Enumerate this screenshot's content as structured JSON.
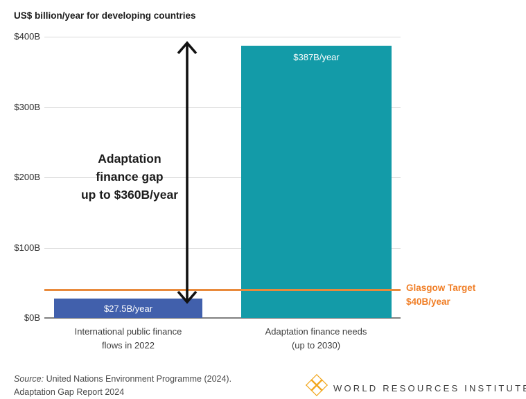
{
  "title": "US$ billion/year for developing countries",
  "chart_data": {
    "type": "bar",
    "categories": [
      "International public finance flows in 2022",
      "Adaptation finance needs (up to 2030)"
    ],
    "cat_labels": [
      [
        "International public finance",
        "flows in 2022"
      ],
      [
        "Adaptation finance needs",
        "(up to 2030)"
      ]
    ],
    "values": [
      27.5,
      387
    ],
    "bar_labels": [
      "$27.5B/year",
      "$387B/year"
    ],
    "bar_colors": [
      "#4160ac",
      "#139ba8"
    ],
    "title": "US$ billion/year for developing countries",
    "xlabel": "",
    "ylabel": "US$ billion/year",
    "ylim": [
      0,
      400
    ],
    "grid": "horizontal",
    "yticks": [
      {
        "value": 0,
        "label": "$0B"
      },
      {
        "value": 100,
        "label": "$100B"
      },
      {
        "value": 200,
        "label": "$200B"
      },
      {
        "value": 300,
        "label": "$300B"
      },
      {
        "value": 400,
        "label": "$400B"
      }
    ],
    "reference_line": {
      "value": 40,
      "color": "#e98a3b",
      "label_color": "#f07e26",
      "label_line1": "Glasgow Target",
      "label_line2": "$40B/year"
    },
    "annotation": {
      "text": "Adaptation finance gap up to $360B/year",
      "line1": "Adaptation",
      "line2": "finance gap",
      "line3": "up to $360B/year"
    }
  },
  "source": {
    "prefix": "Source:",
    "line1": "United Nations Environment Programme (2024).",
    "line2": "Adaptation Gap Report 2024"
  },
  "footer_logo": {
    "text": "WORLD RESOURCES INSTITUTE",
    "icon": "wri-lattice-icon",
    "icon_color": "#f2a71f"
  }
}
